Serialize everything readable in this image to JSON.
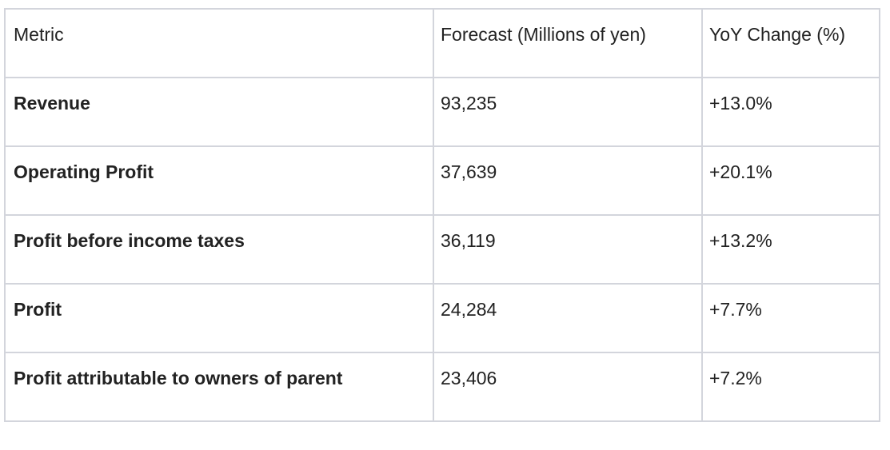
{
  "table": {
    "header": [
      "Metric",
      "Forecast (Millions of yen)",
      "YoY Change (%)"
    ],
    "rows": [
      [
        "Revenue",
        "93,235",
        "+13.0%"
      ],
      [
        "Operating Profit",
        "37,639",
        "+20.1%"
      ],
      [
        "Profit before income taxes",
        "36,119",
        "+13.2%"
      ],
      [
        "Profit",
        "24,284",
        "+7.7%"
      ],
      [
        "Profit attributable to owners of parent",
        "23,406",
        "+7.2%"
      ]
    ]
  }
}
